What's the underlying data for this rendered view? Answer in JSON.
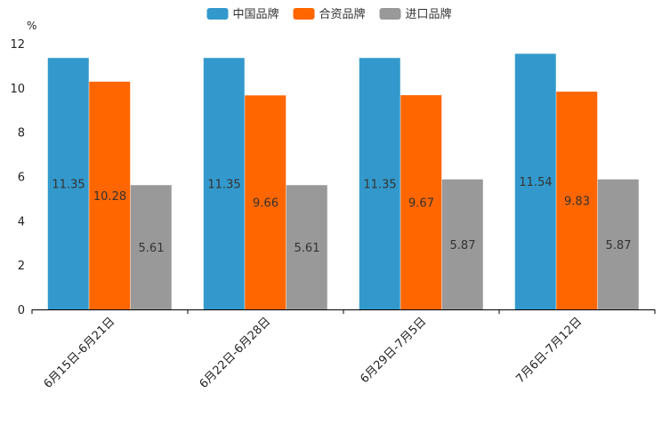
{
  "chart_data": {
    "type": "bar",
    "ylabel_unit": "%",
    "ylim": [
      0,
      12
    ],
    "yticks": [
      0,
      2,
      4,
      6,
      8,
      10,
      12
    ],
    "categories": [
      "6月15日-6月21日",
      "6月22日-6月28日",
      "6月29日-7月5日",
      "7月6日-7月12日"
    ],
    "series": [
      {
        "name": "中国品牌",
        "color": "#3399cc",
        "values": [
          11.35,
          11.35,
          11.35,
          11.54
        ]
      },
      {
        "name": "合资品牌",
        "color": "#ff6600",
        "values": [
          10.28,
          9.66,
          9.67,
          9.83
        ]
      },
      {
        "name": "进口品牌",
        "color": "#999999",
        "values": [
          5.61,
          5.61,
          5.87,
          5.87
        ]
      }
    ],
    "legend_position": "top-center",
    "grid": false
  }
}
